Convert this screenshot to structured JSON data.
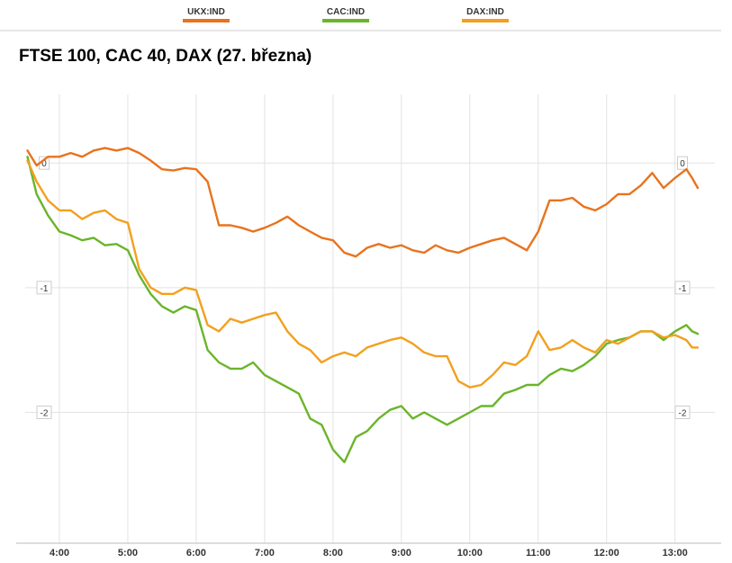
{
  "chart_data": {
    "type": "line",
    "title": "FTSE 100, CAC 40, DAX (27. března)",
    "xlabel": "",
    "ylabel": "",
    "x_ticks": [
      "4:00",
      "5:00",
      "6:00",
      "7:00",
      "8:00",
      "9:00",
      "10:00",
      "11:00",
      "12:00",
      "13:00"
    ],
    "y_ticks": [
      "0",
      "-1",
      "-2"
    ],
    "xlim": [
      "3:30",
      "13:35"
    ],
    "ylim": [
      -3.05,
      0.55
    ],
    "grid": true,
    "legend_position": "top",
    "x": [
      "3:32",
      "3:40",
      "3:50",
      "4:00",
      "4:10",
      "4:20",
      "4:30",
      "4:40",
      "4:50",
      "5:00",
      "5:10",
      "5:20",
      "5:30",
      "5:40",
      "5:50",
      "6:00",
      "6:10",
      "6:20",
      "6:30",
      "6:40",
      "6:50",
      "7:00",
      "7:10",
      "7:20",
      "7:30",
      "7:40",
      "7:50",
      "8:00",
      "8:10",
      "8:20",
      "8:30",
      "8:40",
      "8:50",
      "9:00",
      "9:10",
      "9:20",
      "9:30",
      "9:40",
      "9:50",
      "10:00",
      "10:10",
      "10:20",
      "10:30",
      "10:40",
      "10:50",
      "11:00",
      "11:10",
      "11:20",
      "11:30",
      "11:40",
      "11:50",
      "12:00",
      "12:10",
      "12:20",
      "12:30",
      "12:40",
      "12:50",
      "13:00",
      "13:10",
      "13:15",
      "13:20"
    ],
    "series": [
      {
        "name": "UKX:IND",
        "color": "#e8731e",
        "values": [
          0.1,
          -0.02,
          0.05,
          0.05,
          0.08,
          0.05,
          0.1,
          0.12,
          0.1,
          0.12,
          0.08,
          0.02,
          -0.05,
          -0.06,
          -0.04,
          -0.05,
          -0.15,
          -0.5,
          -0.5,
          -0.52,
          -0.55,
          -0.52,
          -0.48,
          -0.43,
          -0.5,
          -0.55,
          -0.6,
          -0.62,
          -0.72,
          -0.75,
          -0.68,
          -0.65,
          -0.68,
          -0.66,
          -0.7,
          -0.72,
          -0.66,
          -0.7,
          -0.72,
          -0.68,
          -0.65,
          -0.62,
          -0.6,
          -0.65,
          -0.7,
          -0.55,
          -0.3,
          -0.3,
          -0.28,
          -0.35,
          -0.38,
          -0.33,
          -0.25,
          -0.25,
          -0.18,
          -0.08,
          -0.2,
          -0.12,
          -0.05,
          -0.12,
          -0.2
        ]
      },
      {
        "name": "CAC:IND",
        "color": "#6ab52a",
        "values": [
          0.05,
          -0.25,
          -0.42,
          -0.55,
          -0.58,
          -0.62,
          -0.6,
          -0.66,
          -0.65,
          -0.7,
          -0.9,
          -1.05,
          -1.15,
          -1.2,
          -1.15,
          -1.18,
          -1.5,
          -1.6,
          -1.65,
          -1.65,
          -1.6,
          -1.7,
          -1.75,
          -1.8,
          -1.85,
          -2.05,
          -2.1,
          -2.3,
          -2.4,
          -2.2,
          -2.15,
          -2.05,
          -1.98,
          -1.95,
          -2.05,
          -2.0,
          -2.05,
          -2.1,
          -2.05,
          -2.0,
          -1.95,
          -1.95,
          -1.85,
          -1.82,
          -1.78,
          -1.78,
          -1.7,
          -1.65,
          -1.67,
          -1.62,
          -1.55,
          -1.45,
          -1.42,
          -1.4,
          -1.35,
          -1.35,
          -1.42,
          -1.35,
          -1.3,
          -1.35,
          -1.37
        ]
      },
      {
        "name": "DAX:IND",
        "color": "#f2a01e",
        "values": [
          0.02,
          -0.15,
          -0.3,
          -0.38,
          -0.38,
          -0.45,
          -0.4,
          -0.38,
          -0.45,
          -0.48,
          -0.85,
          -1.0,
          -1.05,
          -1.05,
          -1.0,
          -1.02,
          -1.3,
          -1.35,
          -1.25,
          -1.28,
          -1.25,
          -1.22,
          -1.2,
          -1.35,
          -1.45,
          -1.5,
          -1.6,
          -1.55,
          -1.52,
          -1.55,
          -1.48,
          -1.45,
          -1.42,
          -1.4,
          -1.45,
          -1.52,
          -1.55,
          -1.55,
          -1.75,
          -1.8,
          -1.78,
          -1.7,
          -1.6,
          -1.62,
          -1.55,
          -1.35,
          -1.5,
          -1.48,
          -1.42,
          -1.48,
          -1.52,
          -1.42,
          -1.45,
          -1.4,
          -1.35,
          -1.35,
          -1.4,
          -1.38,
          -1.42,
          -1.48,
          -1.48
        ]
      }
    ]
  }
}
